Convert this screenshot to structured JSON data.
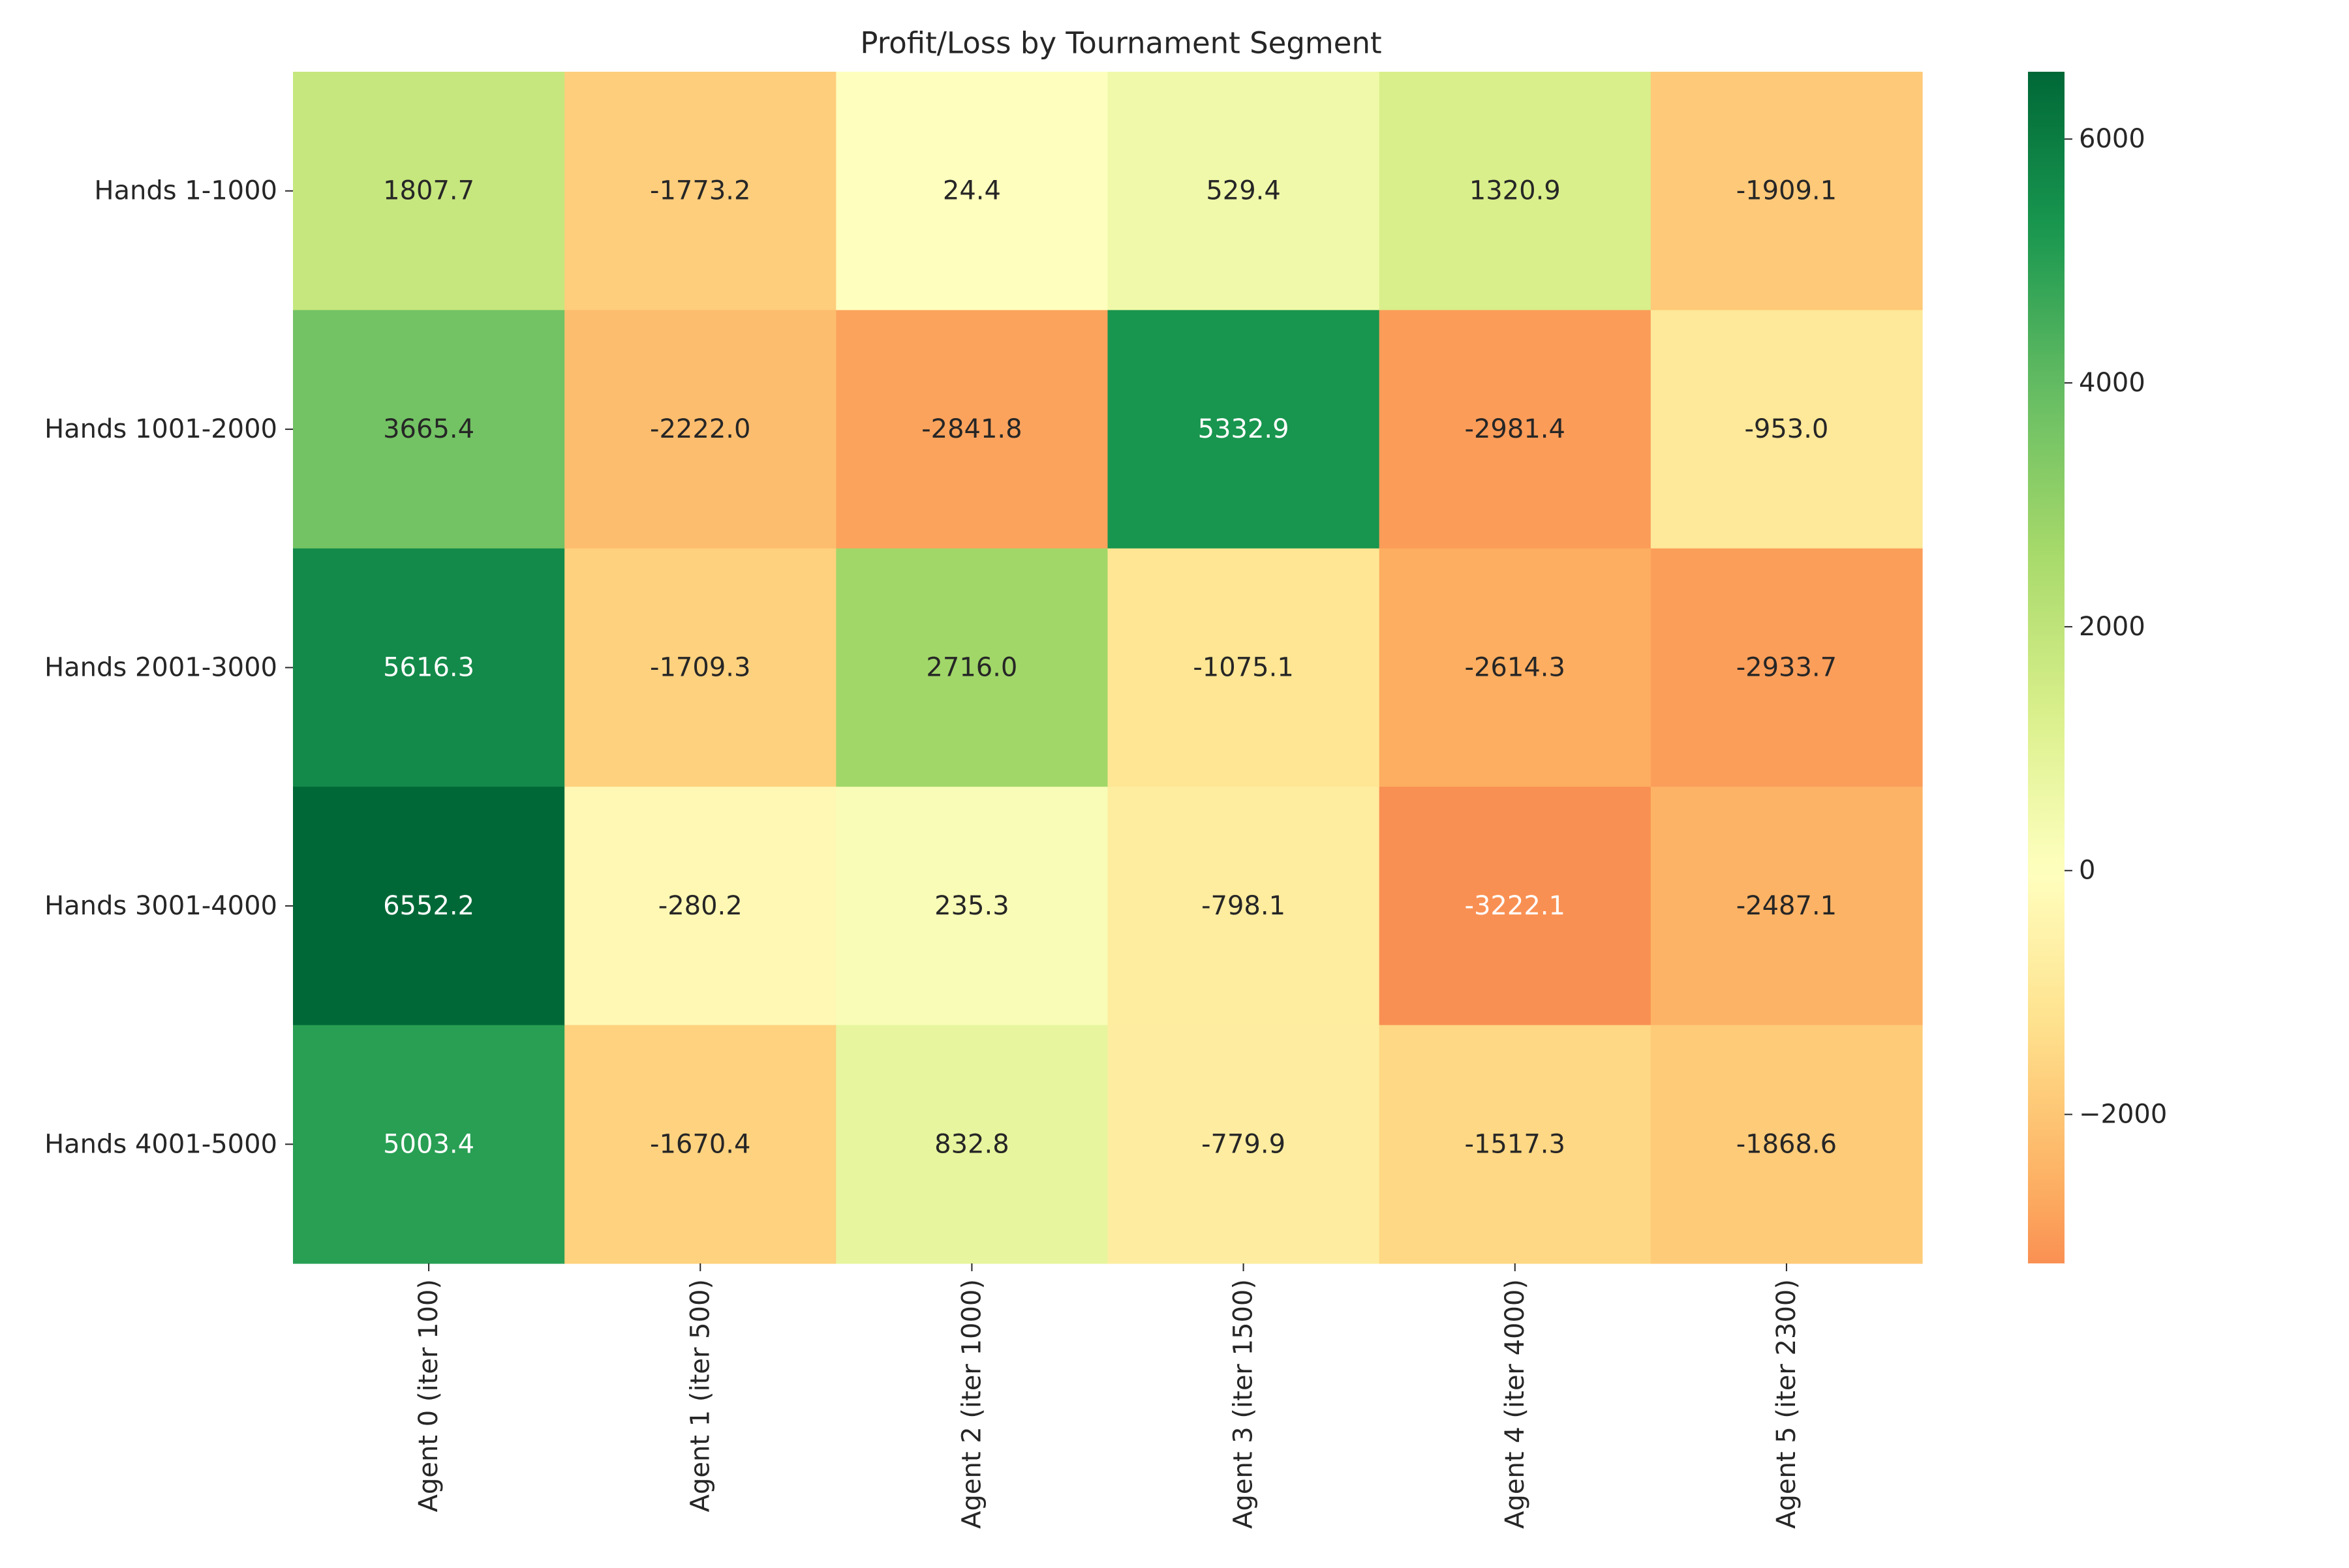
{
  "chart_data": {
    "type": "heatmap",
    "title": "Profit/Loss by Tournament Segment",
    "xlabel": "",
    "ylabel": "",
    "x_categories": [
      "Agent 0 (iter 100)",
      "Agent 1 (iter 500)",
      "Agent 2 (iter 1000)",
      "Agent 3 (iter 1500)",
      "Agent 4 (iter 4000)",
      "Agent 5 (iter 2300)"
    ],
    "y_categories": [
      "Hands 1-1000",
      "Hands 1001-2000",
      "Hands 2001-3000",
      "Hands 3001-4000",
      "Hands 4001-5000"
    ],
    "values": [
      [
        1807.7,
        -1773.2,
        24.4,
        529.4,
        1320.9,
        -1909.1
      ],
      [
        3665.4,
        -2222.0,
        -2841.8,
        5332.9,
        -2981.4,
        -953.0
      ],
      [
        5616.3,
        -1709.3,
        2716.0,
        -1075.1,
        -2614.3,
        -2933.7
      ],
      [
        6552.2,
        -280.2,
        235.3,
        -798.1,
        -3222.1,
        -2487.1
      ],
      [
        5003.4,
        -1670.4,
        832.8,
        -779.9,
        -1517.3,
        -1868.6
      ]
    ],
    "annotation_format": "0.1f",
    "colormap": "RdYlGn",
    "center": 0,
    "color_range": [
      -3222.1,
      6552.2
    ],
    "colorbar": {
      "ticks": [
        -2000,
        0,
        2000,
        4000,
        6000
      ],
      "tick_labels": [
        "−2000",
        "0",
        "2000",
        "4000",
        "6000"
      ]
    },
    "colors": {
      "low_end": "#f99153",
      "mid": "#feffbe",
      "high_end": "#006837",
      "text_dark": "#262626",
      "text_light": "#ffffff"
    },
    "grid": false,
    "legend": "colorbar-right"
  }
}
